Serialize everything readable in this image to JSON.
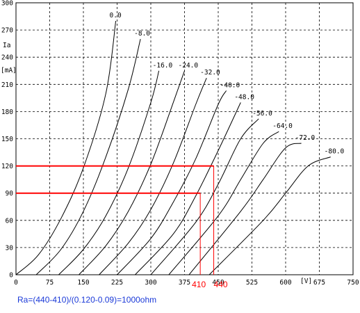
{
  "chart_data": {
    "type": "line",
    "x_axis": {
      "range": [
        0,
        750
      ],
      "ticks": [
        0,
        75,
        150,
        225,
        300,
        375,
        450,
        525,
        600,
        675,
        750
      ],
      "unit": "[V]"
    },
    "y_axis": {
      "range": [
        0,
        300
      ],
      "ticks": [
        0,
        30,
        60,
        90,
        120,
        150,
        180,
        210,
        240,
        270,
        300
      ],
      "label": "Ia",
      "unit": "[mA]"
    },
    "grid": true,
    "series": [
      {
        "name": "0.0",
        "points": [
          [
            0,
            0
          ],
          [
            50,
            22
          ],
          [
            100,
            62
          ],
          [
            150,
            118
          ],
          [
            200,
            200
          ],
          [
            222,
            280
          ]
        ]
      },
      {
        "name": "-8.0",
        "points": [
          [
            45,
            0
          ],
          [
            100,
            28
          ],
          [
            150,
            70
          ],
          [
            200,
            130
          ],
          [
            250,
            205
          ],
          [
            277,
            260
          ]
        ]
      },
      {
        "name": "-16.0",
        "points": [
          [
            95,
            0
          ],
          [
            150,
            28
          ],
          [
            200,
            65
          ],
          [
            250,
            118
          ],
          [
            300,
            190
          ],
          [
            318,
            225
          ]
        ]
      },
      {
        "name": "-24.0",
        "points": [
          [
            140,
            0
          ],
          [
            200,
            32
          ],
          [
            250,
            70
          ],
          [
            300,
            122
          ],
          [
            350,
            190
          ],
          [
            375,
            225
          ]
        ]
      },
      {
        "name": "-32.0",
        "points": [
          [
            185,
            0
          ],
          [
            250,
            35
          ],
          [
            300,
            72
          ],
          [
            350,
            123
          ],
          [
            400,
            188
          ],
          [
            424,
            217
          ]
        ]
      },
      {
        "name": "-40.0",
        "points": [
          [
            225,
            0
          ],
          [
            300,
            40
          ],
          [
            350,
            80
          ],
          [
            400,
            128
          ],
          [
            450,
            188
          ],
          [
            468,
            203
          ]
        ]
      },
      {
        "name": "-48.0",
        "points": [
          [
            265,
            0
          ],
          [
            350,
            45
          ],
          [
            400,
            87
          ],
          [
            450,
            137
          ],
          [
            500,
            190
          ]
        ]
      },
      {
        "name": "-56.0",
        "points": [
          [
            300,
            0
          ],
          [
            400,
            58
          ],
          [
            450,
            100
          ],
          [
            500,
            150
          ],
          [
            540,
            172
          ]
        ]
      },
      {
        "name": "-64.0",
        "points": [
          [
            340,
            0
          ],
          [
            450,
            65
          ],
          [
            500,
            105
          ],
          [
            550,
            145
          ],
          [
            585,
            158
          ]
        ]
      },
      {
        "name": "-72.0",
        "points": [
          [
            385,
            0
          ],
          [
            500,
            70
          ],
          [
            550,
            105
          ],
          [
            600,
            140
          ],
          [
            635,
            145
          ]
        ]
      },
      {
        "name": "-80.0",
        "points": [
          [
            430,
            0
          ],
          [
            550,
            60
          ],
          [
            600,
            90
          ],
          [
            650,
            120
          ],
          [
            700,
            130
          ]
        ]
      }
    ],
    "markers": [
      {
        "x": 410,
        "y": 90,
        "label": "410"
      },
      {
        "x": 440,
        "y": 120,
        "label": "440"
      }
    ],
    "formula": "Ra=(440-410)/(0.120-0.09)=1000ohm",
    "colors": {
      "curves": "#000000",
      "grid": "#000000",
      "marker": "#ff0000",
      "formula": "#1a39d8"
    }
  }
}
